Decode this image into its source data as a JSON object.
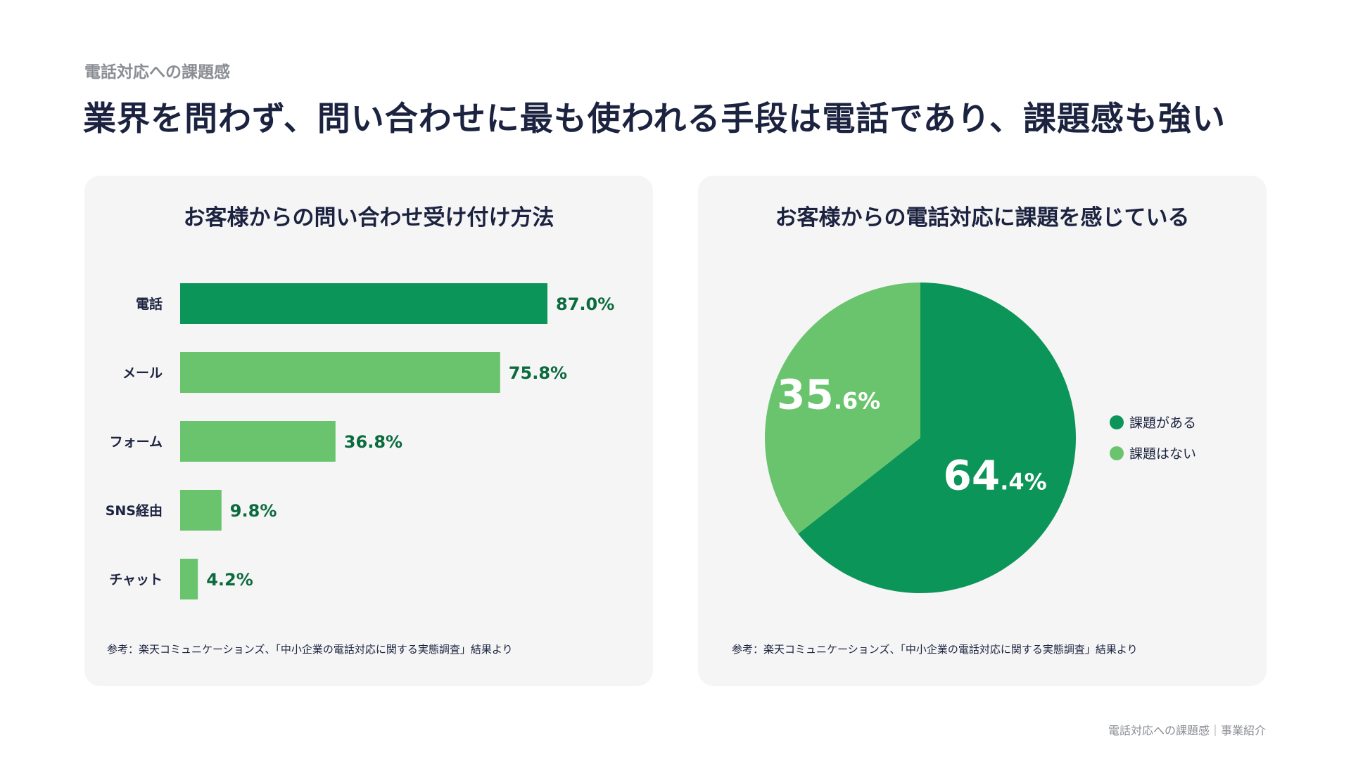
{
  "header": {
    "section": "電話対応への課題感",
    "title": "業界を問わず、問い合わせに最も使われる手段は電話であり、課題感も強い"
  },
  "footer": {
    "text": "電話対応への課題感｜事業紹介"
  },
  "colors": {
    "dark_green": "#0b9558",
    "light_green": "#6ac46d",
    "label_green": "#0b6b3f",
    "text": "#1c2340"
  },
  "chart_data": [
    {
      "type": "bar",
      "orientation": "horizontal",
      "title": "お客様からの問い合わせ受け付け方法",
      "categories": [
        "電話",
        "メール",
        "フォーム",
        "SNS経由",
        "チャット"
      ],
      "values": [
        87.0,
        75.8,
        36.8,
        9.8,
        4.2
      ],
      "labels": [
        "87.0%",
        "75.8%",
        "36.8%",
        "9.8%",
        "4.2%"
      ],
      "highlight": "電話",
      "xlim": [
        0,
        100
      ],
      "unit": "%",
      "note": "参考：楽天コミュニケーションズ、「中小企業の電話対応に関する実態調査」結果より"
    },
    {
      "type": "pie",
      "title": "お客様からの電話対応に課題を感じている",
      "slices": [
        {
          "name": "課題がある",
          "value": 64.4,
          "int": "64",
          "dec": ".4%"
        },
        {
          "name": "課題はない",
          "value": 35.6,
          "int": "35",
          "dec": ".6%"
        }
      ],
      "legend": "right",
      "note": "参考：楽天コミュニケーションズ、「中小企業の電話対応に関する実態調査」結果より"
    }
  ]
}
